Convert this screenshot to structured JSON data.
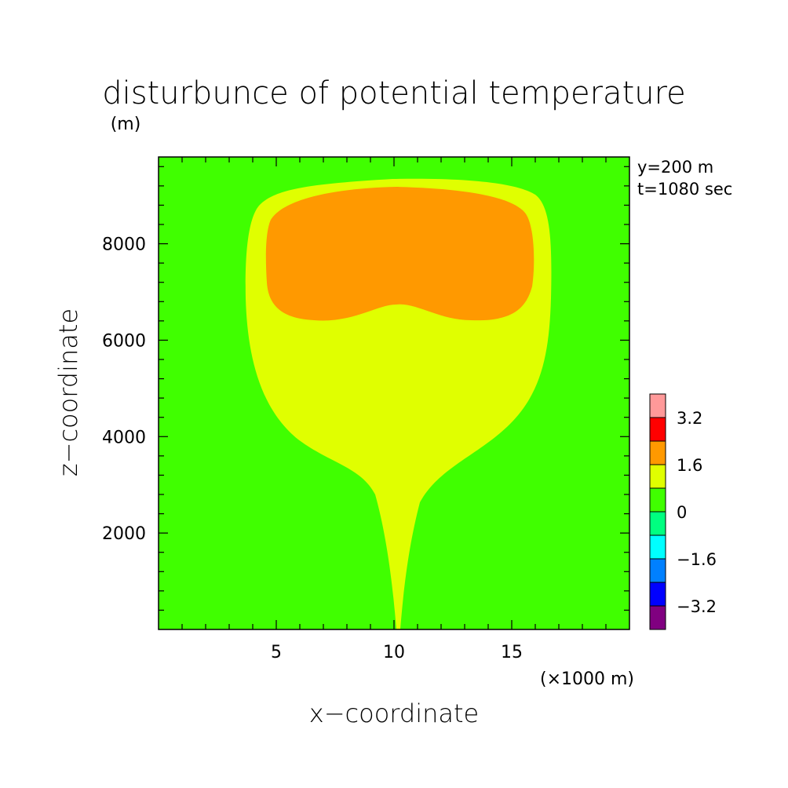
{
  "chart_data": {
    "type": "contour",
    "title": "disturbunce of potential temperature",
    "ylabel_unit": "(m)",
    "xlabel": "x−coordinate",
    "ylabel": "z−coordinate",
    "xunit": "(×1000 m)",
    "annotations": [
      "y=200 m",
      "t=1080 sec"
    ],
    "xlim": [
      0,
      20
    ],
    "ylim": [
      0,
      9800
    ],
    "xticks": [
      5,
      10,
      15
    ],
    "yticks": [
      2000,
      4000,
      6000,
      8000
    ],
    "colorbar": {
      "colors": [
        "#800080",
        "#0000ff",
        "#0080ff",
        "#00ffff",
        "#00ff80",
        "#40ff00",
        "#e0ff00",
        "#ff9900",
        "#ff0000",
        "#ff9999"
      ],
      "labels": [
        "−3.2",
        "−1.6",
        "0",
        "1.6",
        "3.2"
      ]
    },
    "regions": [
      {
        "level": "0",
        "color": "#40ff00",
        "extent": "background"
      },
      {
        "level": "1.6",
        "color": "#e0ff00",
        "x_range": [
          3.8,
          16.5
        ],
        "z_range": [
          0,
          9500
        ]
      },
      {
        "level": "2.4",
        "color": "#ff9900",
        "x_range": [
          4.8,
          15.9
        ],
        "z_range": [
          6500,
          9300
        ]
      }
    ],
    "grid": false
  }
}
